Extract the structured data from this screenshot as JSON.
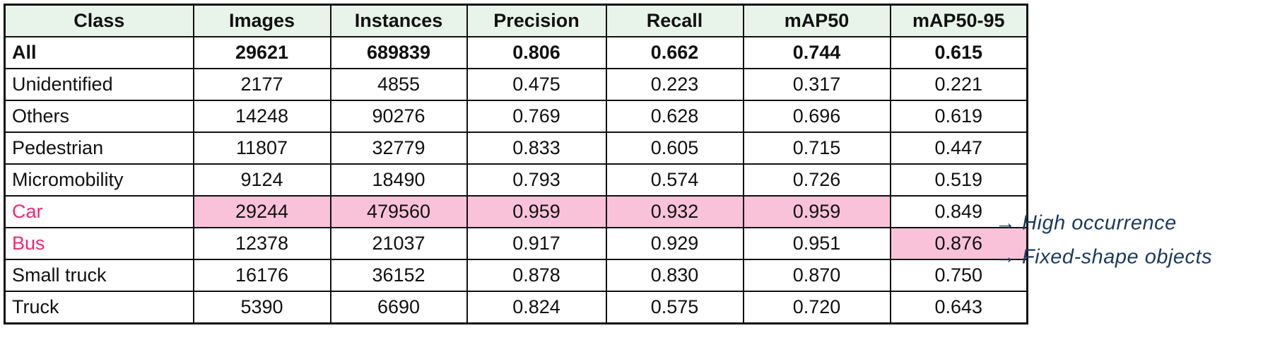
{
  "chart_data": {
    "type": "table",
    "title": "Object detection metrics per class",
    "columns": [
      "Class",
      "Images",
      "Instances",
      "Precision",
      "Recall",
      "mAP50",
      "mAP50-95"
    ],
    "rows": [
      {
        "label": "All",
        "values": [
          "29621",
          "689839",
          "0.806",
          "0.662",
          "0.744",
          "0.615"
        ],
        "bold": true,
        "pink_label": false,
        "highlighted_cols": []
      },
      {
        "label": "Unidentified",
        "values": [
          "2177",
          "4855",
          "0.475",
          "0.223",
          "0.317",
          "0.221"
        ],
        "bold": false,
        "pink_label": false,
        "highlighted_cols": []
      },
      {
        "label": "Others",
        "values": [
          "14248",
          "90276",
          "0.769",
          "0.628",
          "0.696",
          "0.619"
        ],
        "bold": false,
        "pink_label": false,
        "highlighted_cols": []
      },
      {
        "label": "Pedestrian",
        "values": [
          "11807",
          "32779",
          "0.833",
          "0.605",
          "0.715",
          "0.447"
        ],
        "bold": false,
        "pink_label": false,
        "highlighted_cols": []
      },
      {
        "label": "Micromobility",
        "values": [
          "9124",
          "18490",
          "0.793",
          "0.574",
          "0.726",
          "0.519"
        ],
        "bold": false,
        "pink_label": false,
        "highlighted_cols": []
      },
      {
        "label": "Car",
        "values": [
          "29244",
          "479560",
          "0.959",
          "0.932",
          "0.959",
          "0.849"
        ],
        "bold": false,
        "pink_label": true,
        "highlighted_cols": [
          0,
          1,
          2,
          3,
          4
        ]
      },
      {
        "label": "Bus",
        "values": [
          "12378",
          "21037",
          "0.917",
          "0.929",
          "0.951",
          "0.876"
        ],
        "bold": false,
        "pink_label": true,
        "highlighted_cols": [
          5
        ]
      },
      {
        "label": "Small truck",
        "values": [
          "16176",
          "36152",
          "0.878",
          "0.830",
          "0.870",
          "0.750"
        ],
        "bold": false,
        "pink_label": false,
        "highlighted_cols": []
      },
      {
        "label": "Truck",
        "values": [
          "5390",
          "6690",
          "0.824",
          "0.575",
          "0.720",
          "0.643"
        ],
        "bold": false,
        "pink_label": false,
        "highlighted_cols": []
      }
    ],
    "layout": {
      "header_row": true,
      "grid": true,
      "annotations_position": "right"
    }
  },
  "annotations": [
    {
      "text": "→ High occurrence",
      "aligned_row": "Car"
    },
    {
      "text": "→ Fixed-shape objects",
      "aligned_row": "Bus"
    }
  ],
  "colors": {
    "header_bg": "#E8F4EA",
    "highlight_bg": "#F9C2D8",
    "accent_text": "#F9256F",
    "annotation_text": "#1C3A5F",
    "border": "#111111"
  }
}
